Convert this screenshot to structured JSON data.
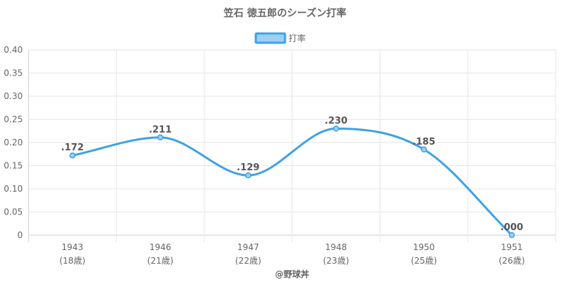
{
  "chart_data": {
    "type": "line",
    "title": "笠石 徳五郎のシーズン打率",
    "categories": [
      "1943",
      "1946",
      "1947",
      "1948",
      "1950",
      "1951"
    ],
    "category_sublabels": [
      "(18歳)",
      "(21歳)",
      "(22歳)",
      "(23歳)",
      "(25歳)",
      "(26歳)"
    ],
    "series": [
      {
        "name": "打率",
        "values": [
          0.172,
          0.211,
          0.129,
          0.23,
          0.185,
          0.0
        ],
        "value_labels": [
          ".172",
          ".211",
          ".129",
          ".230",
          ".185",
          ".000"
        ],
        "color": "#3ea2e5"
      }
    ],
    "ylim": [
      0,
      0.4
    ],
    "yticks": [
      "0",
      "0.05",
      "0.10",
      "0.15",
      "0.20",
      "0.25",
      "0.30",
      "0.35",
      "0.40"
    ],
    "xlabel": "",
    "ylabel": "",
    "grid": true,
    "legend_position": "top"
  },
  "credit": "@野球丼",
  "colors": {
    "line": "#3ea2e5",
    "legend_fill": "#9fd0f2",
    "grid": "#e6e6e6",
    "axis": "#cccccc",
    "text": "#666666"
  }
}
